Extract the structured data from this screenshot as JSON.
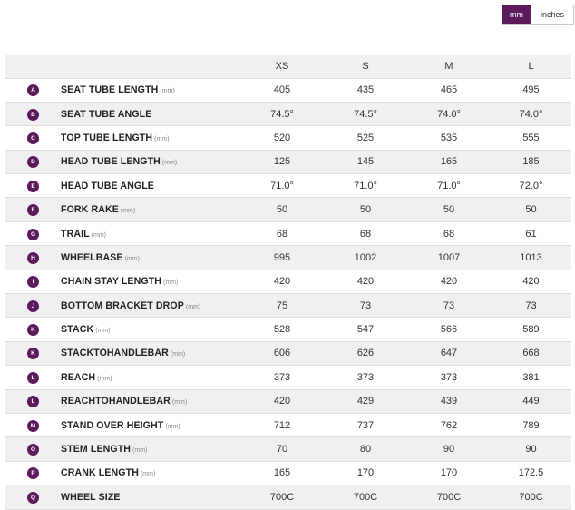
{
  "unit_toggle": {
    "mm_label": "mm",
    "inches_label": "inches",
    "selected": "mm"
  },
  "colors": {
    "accent": "#5b1a5c",
    "row_alt": "#f0f0f0",
    "border": "#dddddd"
  },
  "table": {
    "sizes": [
      "XS",
      "S",
      "M",
      "L"
    ],
    "rows": [
      {
        "badge": "A",
        "name": "SEAT TUBE LENGTH",
        "unit": "(mm)",
        "values": [
          "405",
          "435",
          "465",
          "495"
        ]
      },
      {
        "badge": "B",
        "name": "SEAT TUBE ANGLE",
        "unit": "",
        "values": [
          "74.5°",
          "74.5°",
          "74.0°",
          "74.0°"
        ]
      },
      {
        "badge": "C",
        "name": "TOP TUBE LENGTH",
        "unit": "(mm)",
        "values": [
          "520",
          "525",
          "535",
          "555"
        ]
      },
      {
        "badge": "D",
        "name": "HEAD TUBE LENGTH",
        "unit": "(mm)",
        "values": [
          "125",
          "145",
          "165",
          "185"
        ]
      },
      {
        "badge": "E",
        "name": "HEAD TUBE ANGLE",
        "unit": "",
        "values": [
          "71.0°",
          "71.0°",
          "71.0°",
          "72.0°"
        ]
      },
      {
        "badge": "F",
        "name": "FORK RAKE",
        "unit": "(mm)",
        "values": [
          "50",
          "50",
          "50",
          "50"
        ]
      },
      {
        "badge": "G",
        "name": "TRAIL",
        "unit": "(mm)",
        "values": [
          "68",
          "68",
          "68",
          "61"
        ]
      },
      {
        "badge": "H",
        "name": "WHEELBASE",
        "unit": "(mm)",
        "values": [
          "995",
          "1002",
          "1007",
          "1013"
        ]
      },
      {
        "badge": "I",
        "name": "CHAIN STAY LENGTH",
        "unit": "(mm)",
        "values": [
          "420",
          "420",
          "420",
          "420"
        ]
      },
      {
        "badge": "J",
        "name": "BOTTOM BRACKET DROP",
        "unit": "(mm)",
        "values": [
          "75",
          "73",
          "73",
          "73"
        ]
      },
      {
        "badge": "K",
        "name": "STACK",
        "unit": "(mm)",
        "values": [
          "528",
          "547",
          "566",
          "589"
        ]
      },
      {
        "badge": "K",
        "name": "STACKTOHANDLEBAR",
        "unit": "(mm)",
        "values": [
          "606",
          "626",
          "647",
          "668"
        ]
      },
      {
        "badge": "L",
        "name": "REACH",
        "unit": "(mm)",
        "values": [
          "373",
          "373",
          "373",
          "381"
        ]
      },
      {
        "badge": "L",
        "name": "REACHTOHANDLEBAR",
        "unit": "(mm)",
        "values": [
          "420",
          "429",
          "439",
          "449"
        ]
      },
      {
        "badge": "M",
        "name": "STAND OVER HEIGHT",
        "unit": "(mm)",
        "values": [
          "712",
          "737",
          "762",
          "789"
        ]
      },
      {
        "badge": "O",
        "name": "STEM LENGTH",
        "unit": "(mm)",
        "values": [
          "70",
          "80",
          "90",
          "90"
        ]
      },
      {
        "badge": "P",
        "name": "CRANK LENGTH",
        "unit": "(mm)",
        "values": [
          "165",
          "170",
          "170",
          "172.5"
        ]
      },
      {
        "badge": "Q",
        "name": "WHEEL SIZE",
        "unit": "",
        "values": [
          "700C",
          "700C",
          "700C",
          "700C"
        ]
      }
    ]
  }
}
